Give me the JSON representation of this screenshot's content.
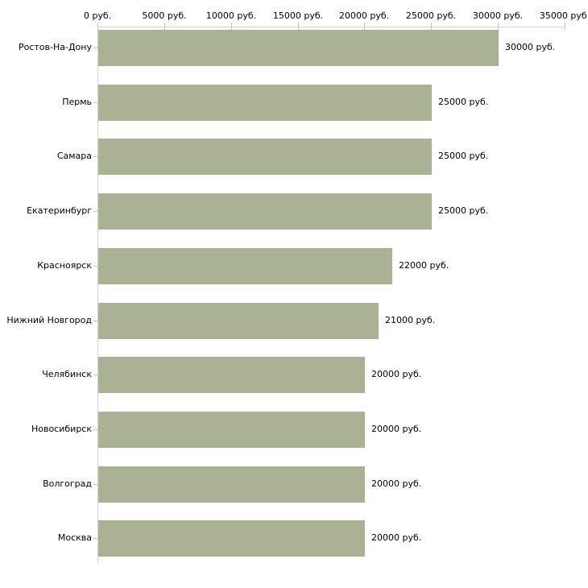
{
  "chart_data": {
    "type": "bar",
    "orientation": "horizontal",
    "title": "",
    "xlabel": "",
    "ylabel": "",
    "grid": false,
    "legend": false,
    "categories": [
      "Ростов-На-Дону",
      "Пермь",
      "Самара",
      "Екатеринбург",
      "Красноярск",
      "Нижний Новгород",
      "Челябинск",
      "Новосибирск",
      "Волгоград",
      "Москва"
    ],
    "values": [
      30000,
      25000,
      25000,
      25000,
      22000,
      21000,
      20000,
      20000,
      20000,
      20000
    ],
    "value_labels": [
      "30000 руб.",
      "25000 руб.",
      "25000 руб.",
      "25000 руб.",
      "22000 руб.",
      "21000 руб.",
      "20000 руб.",
      "20000 руб.",
      "20000 руб.",
      "20000 руб."
    ],
    "x_axis": {
      "position": "top",
      "tick_values": [
        0,
        5000,
        10000,
        15000,
        20000,
        25000,
        30000,
        35000
      ],
      "tick_labels": [
        "0 руб.",
        "5000 руб.",
        "10000 руб.",
        "15000 руб.",
        "20000 руб.",
        "25000 руб.",
        "30000 руб.",
        "35000 руб."
      ]
    },
    "xlim": [
      0,
      35000
    ],
    "colors": {
      "bar": "#aab294",
      "axis_line": "#d4d4d4",
      "tick_mark": "#c6c8a8",
      "text": "#000000",
      "background": "#ffffff"
    }
  }
}
